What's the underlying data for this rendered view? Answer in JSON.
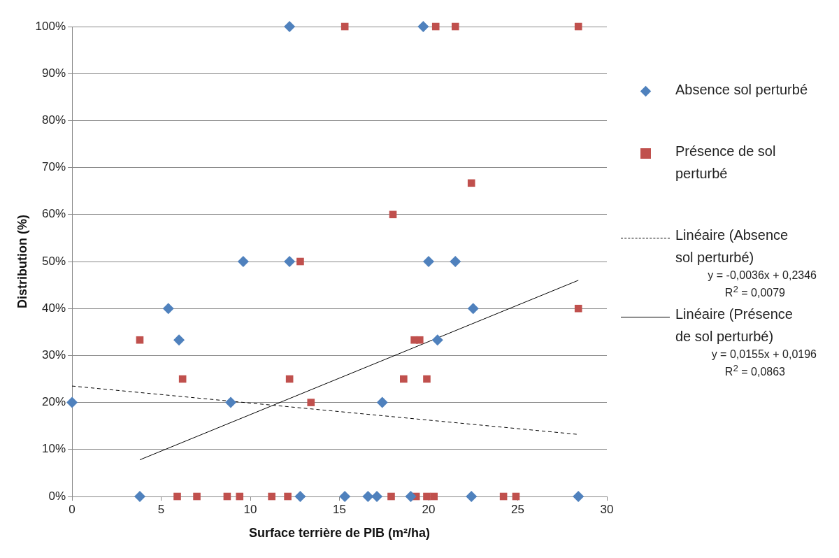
{
  "chart_data": {
    "type": "scatter",
    "xlabel": "Surface terrière de PIB (m²/ha)",
    "ylabel": "Distribution (%)",
    "xlim": [
      0,
      30
    ],
    "xticks": [
      0,
      5,
      10,
      15,
      20,
      25,
      30
    ],
    "ylim": [
      0,
      100
    ],
    "yticks": [
      {
        "value": 0,
        "label": "0%"
      },
      {
        "value": 10,
        "label": "10%"
      },
      {
        "value": 20,
        "label": "20%"
      },
      {
        "value": 30,
        "label": "30%"
      },
      {
        "value": 40,
        "label": "40%"
      },
      {
        "value": 50,
        "label": "50%"
      },
      {
        "value": 60,
        "label": "60%"
      },
      {
        "value": 70,
        "label": "70%"
      },
      {
        "value": 80,
        "label": "80%"
      },
      {
        "value": 90,
        "label": "90%"
      },
      {
        "value": 100,
        "label": "100%"
      }
    ],
    "grid": "y",
    "legend": "right",
    "series": [
      {
        "name": "Absence sol perturbé",
        "color": "#4f81bd",
        "marker": "diamond",
        "x": [
          0,
          3.8,
          12.8,
          15.3,
          16.6,
          17.1,
          19.0,
          22.4,
          28.4,
          5.4,
          22.5,
          6.0,
          20.5,
          9.6,
          12.2,
          20.0,
          21.5,
          8.9,
          17.4,
          12.2,
          19.7
        ],
        "values": [
          20,
          0,
          0,
          0,
          0,
          0,
          0,
          0,
          0,
          40,
          40,
          33.3,
          33.3,
          50,
          50,
          50,
          50,
          20,
          20,
          100,
          100
        ]
      },
      {
        "name": "Présence de sol perturbé",
        "color": "#c0504d",
        "marker": "square",
        "x": [
          15.3,
          20.4,
          21.5,
          28.4,
          22.4,
          18.0,
          12.8,
          28.4,
          3.8,
          19.2,
          19.5,
          6.2,
          12.2,
          18.6,
          19.9,
          13.4,
          5.9,
          7.0,
          8.7,
          9.4,
          11.2,
          12.1,
          17.9,
          19.3,
          19.9,
          20.3,
          24.2,
          24.9
        ],
        "values": [
          100,
          100,
          100,
          100,
          66.7,
          60,
          50,
          40,
          33.3,
          33.3,
          33.3,
          25,
          25,
          25,
          25,
          20,
          0,
          0,
          0,
          0,
          0,
          0,
          0,
          0,
          0,
          0,
          0,
          0
        ]
      },
      {
        "name": "Linéaire (Absence sol perturbé)",
        "type": "line",
        "color": "#000000",
        "line_style": "dashed",
        "marker": "none",
        "x": [
          0,
          28.4
        ],
        "values": [
          23.5,
          13.2
        ]
      },
      {
        "name": "Linéaire (Présence de sol perturbé)",
        "type": "line",
        "color": "#000000",
        "line_style": "solid",
        "marker": "none",
        "x": [
          3.8,
          28.4
        ],
        "values": [
          7.8,
          46.0
        ]
      }
    ],
    "annotations": [
      "y = -0,0036x + 0,2346",
      "R$^{2}$ = 0,0079",
      "y = 0,0155x + 0,0196",
      "R$^{2}$ = 0,0863"
    ]
  }
}
